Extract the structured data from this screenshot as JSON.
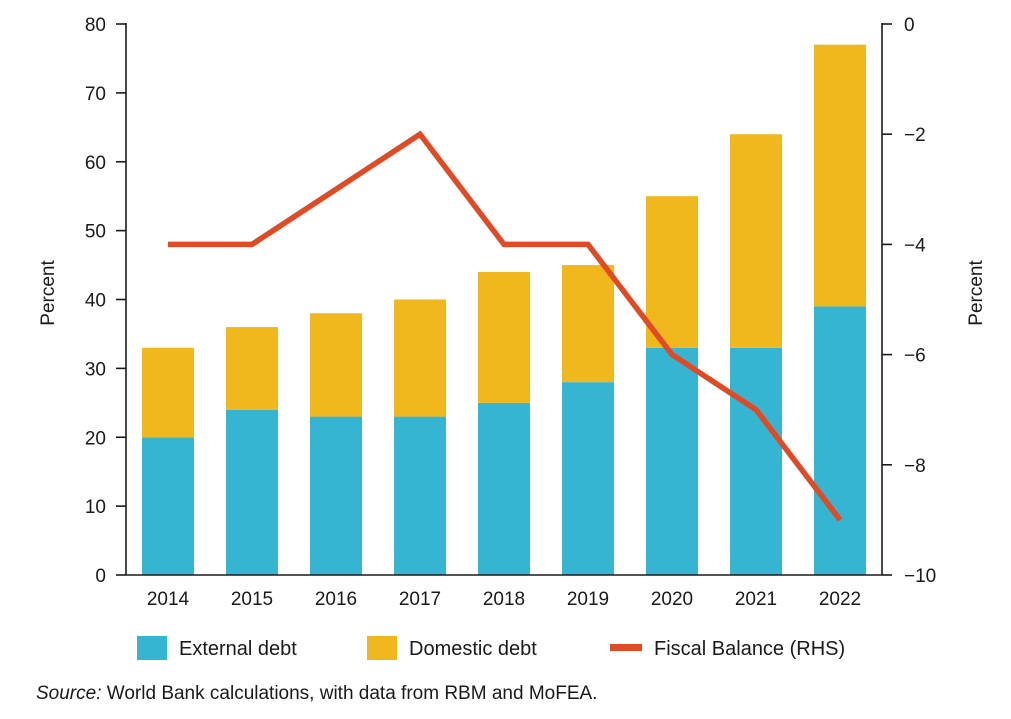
{
  "chart_data": {
    "type": "bar",
    "stacked": true,
    "categories": [
      "2014",
      "2015",
      "2016",
      "2017",
      "2018",
      "2019",
      "2020",
      "2021",
      "2022"
    ],
    "series": [
      {
        "name": "External debt",
        "type": "bar",
        "axis": "left",
        "color": "#36b5d3",
        "values": [
          20,
          24,
          23,
          23,
          25,
          28,
          33,
          33,
          39
        ]
      },
      {
        "name": "Domestic debt",
        "type": "bar",
        "axis": "left",
        "color": "#f0b81c",
        "values": [
          13,
          12,
          15,
          17,
          19,
          17,
          22,
          31,
          38
        ]
      },
      {
        "name": "Fiscal Balance (RHS)",
        "type": "line",
        "axis": "right",
        "color": "#e04a25",
        "values": [
          -4,
          -4,
          -3,
          -2,
          -4,
          -4,
          -6,
          -7,
          -9
        ]
      }
    ],
    "ylabel": "Percent",
    "ylim": [
      0,
      80
    ],
    "yticks": [
      "0",
      "10",
      "20",
      "30",
      "40",
      "50",
      "60",
      "70",
      "80"
    ],
    "y2label": "Percent",
    "y2lim": [
      -10,
      0
    ],
    "y2ticks": [
      "0",
      "−2",
      "−4",
      "−6",
      "−8",
      "−10"
    ],
    "y2tick_values": [
      0,
      -2,
      -4,
      -6,
      -8,
      -10
    ],
    "grid": false,
    "legend_position": "bottom"
  },
  "source": {
    "label": "Source:",
    "text": " World Bank calculations, with data from RBM and MoFEA."
  }
}
